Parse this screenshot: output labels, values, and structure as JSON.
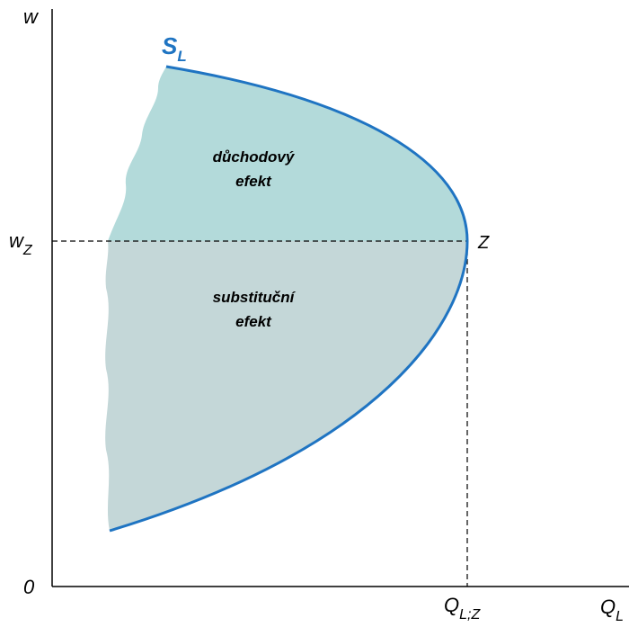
{
  "axes": {
    "y_label": "w",
    "x_label_main": "Q",
    "x_label_sub": "L",
    "origin_label": "0"
  },
  "curve": {
    "label_main": "S",
    "label_sub": "L",
    "color": "#1f74c2"
  },
  "point": {
    "label": "Z",
    "wage_label_main": "w",
    "wage_label_sub": "Z",
    "quantity_label_main": "Q",
    "quantity_label_sub": "L;Z"
  },
  "regions": {
    "upper_line1": "důchodový",
    "upper_line2": "efekt",
    "upper_color": "#b3dada",
    "lower_line1": "substituční",
    "lower_line2": "efekt",
    "lower_color": "#c4d7d8"
  }
}
